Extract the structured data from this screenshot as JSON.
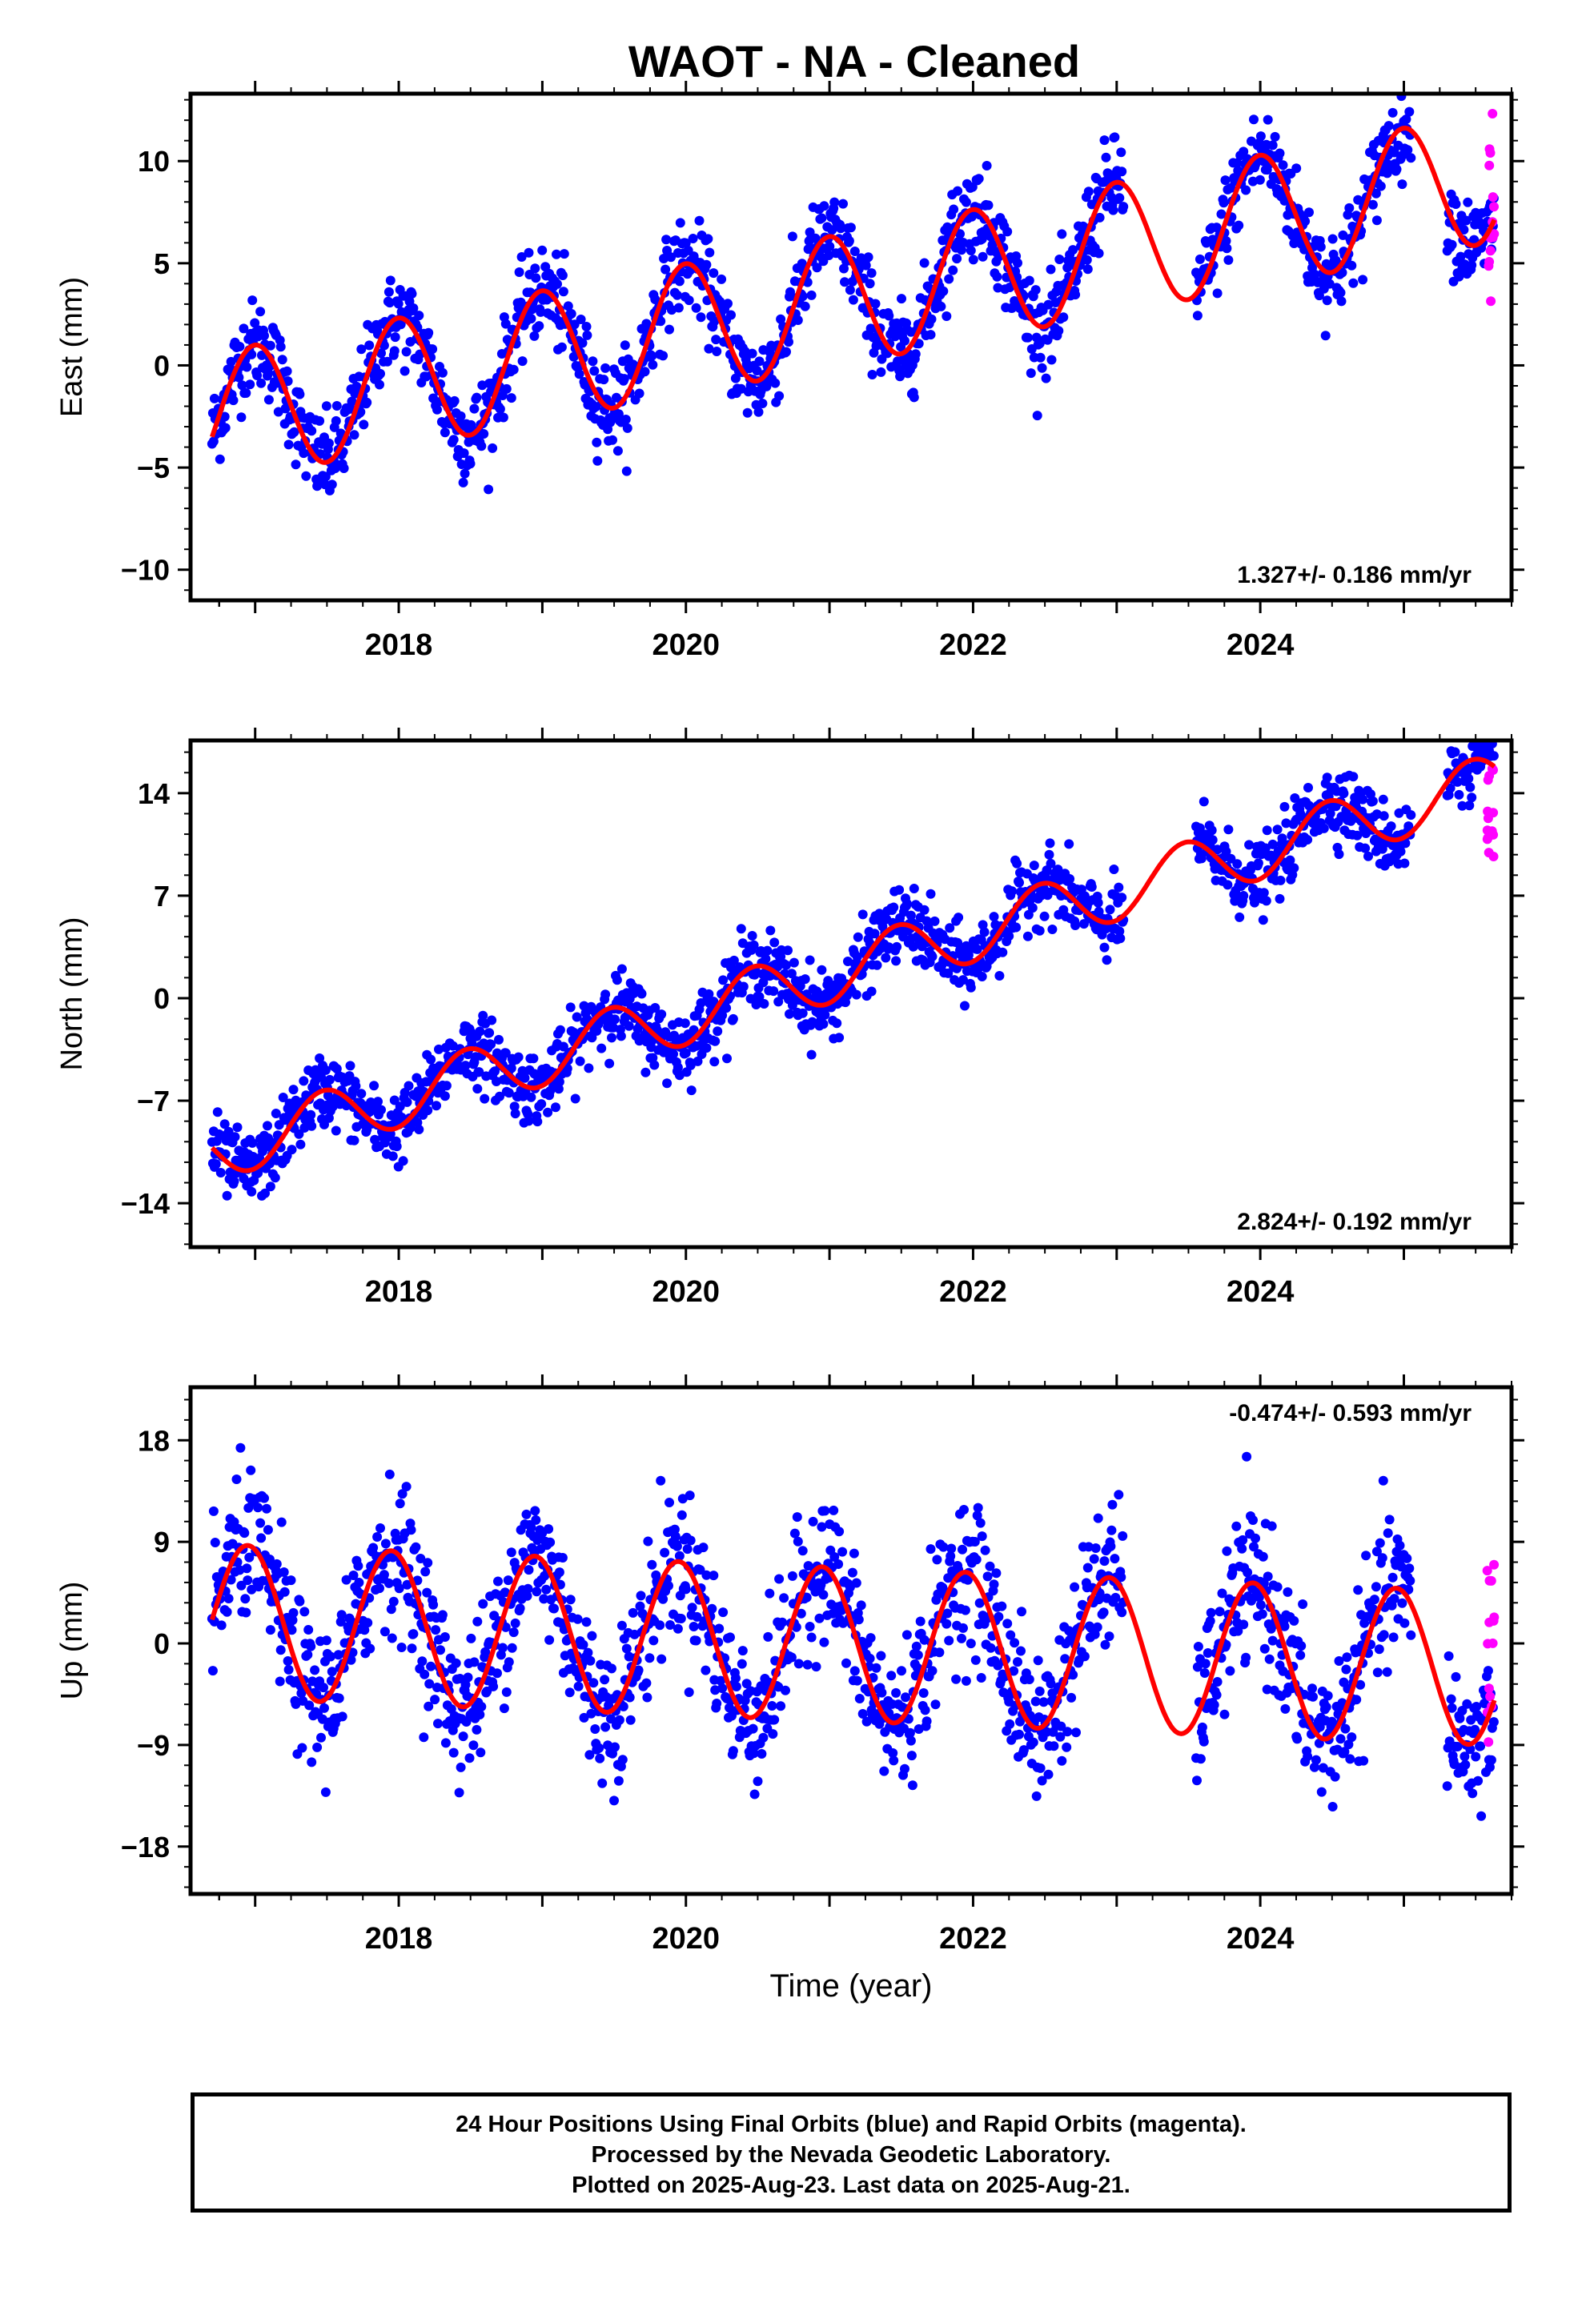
{
  "title": "WAOT  - NA - Cleaned",
  "footer": {
    "line1": "24 Hour Positions Using Final Orbits (blue) and Rapid Orbits (magenta).",
    "line2": "Processed by the Nevada Geodetic Laboratory.",
    "line3": "Plotted on 2025-Aug-23. Last data on 2025-Aug-21."
  },
  "colors": {
    "final_orbits": "#0000ff",
    "rapid_orbits": "#ff00ff",
    "model_fit": "#ff0000"
  },
  "chart_data": [
    {
      "type": "scatter",
      "panel": "east",
      "ylabel": "East (mm)",
      "xlabel": "",
      "rate_label": "1.327+/- 0.186 mm/yr",
      "rate_position": "bottom-right",
      "xlim": [
        2016.55,
        2025.75
      ],
      "ylim": [
        -11.5,
        13.3
      ],
      "yticks": [
        10,
        5,
        0,
        -5,
        -10
      ],
      "xticks": [
        2018,
        2020,
        2022,
        2024
      ],
      "fit": {
        "start": 2016.7,
        "end": 2025.63,
        "rate": 1.327,
        "amplitude": 3.2,
        "phase": 1.6,
        "offset": -2.6,
        "noise": 1.1
      },
      "rapid": {
        "start": 2025.58,
        "end": 2025.63,
        "ylo": 3,
        "yhi": 13
      }
    },
    {
      "type": "scatter",
      "panel": "north",
      "ylabel": "North (mm)",
      "xlabel": "",
      "rate_label": "2.824+/- 0.192 mm/yr",
      "rate_position": "bottom-right",
      "xlim": [
        2016.55,
        2025.75
      ],
      "ylim": [
        -17,
        17.6
      ],
      "yticks": [
        14,
        7,
        0,
        -7,
        -14
      ],
      "xticks": [
        2018,
        2020,
        2022,
        2024
      ],
      "fit": {
        "start": 2016.7,
        "end": 2025.63,
        "rate": 2.824,
        "amplitude": 2.0,
        "phase": -1.4,
        "offset": -10.5,
        "noise": 1.2
      },
      "rapid": {
        "start": 2025.58,
        "end": 2025.63,
        "ylo": 9.5,
        "yhi": 16
      }
    },
    {
      "type": "scatter",
      "panel": "up",
      "ylabel": "Up (mm)",
      "xlabel": "Time (year)",
      "rate_label": "-0.474+/- 0.593 mm/yr",
      "rate_position": "top-right",
      "xlim": [
        2016.55,
        2025.75
      ],
      "ylim": [
        -22.2,
        22.7
      ],
      "yticks": [
        18,
        9,
        0,
        -9,
        -18
      ],
      "xticks": [
        2018,
        2020,
        2022,
        2024
      ],
      "fit": {
        "start": 2016.7,
        "end": 2025.63,
        "rate": -0.474,
        "amplitude": 6.8,
        "phase": 1.9,
        "offset": 2.0,
        "noise": 3.2
      },
      "rapid": {
        "start": 2025.58,
        "end": 2025.63,
        "ylo": -9.5,
        "yhi": 8.5
      }
    }
  ]
}
